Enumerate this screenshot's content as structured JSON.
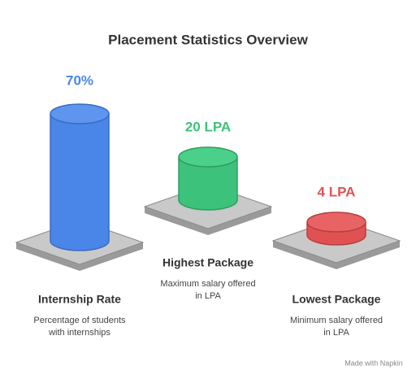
{
  "title": "Placement Statistics Overview",
  "items": [
    {
      "value": "70%",
      "label": "Internship Rate",
      "description": [
        "Percentage of students",
        "with internships"
      ]
    },
    {
      "value": "20 LPA",
      "label": "Highest Package",
      "description": [
        "Maximum salary offered",
        "in LPA"
      ]
    },
    {
      "value": "4 LPA",
      "label": "Lowest Package",
      "description": [
        "Minimum salary offered",
        "in LPA"
      ]
    }
  ],
  "footer": "Made with Napkin"
}
